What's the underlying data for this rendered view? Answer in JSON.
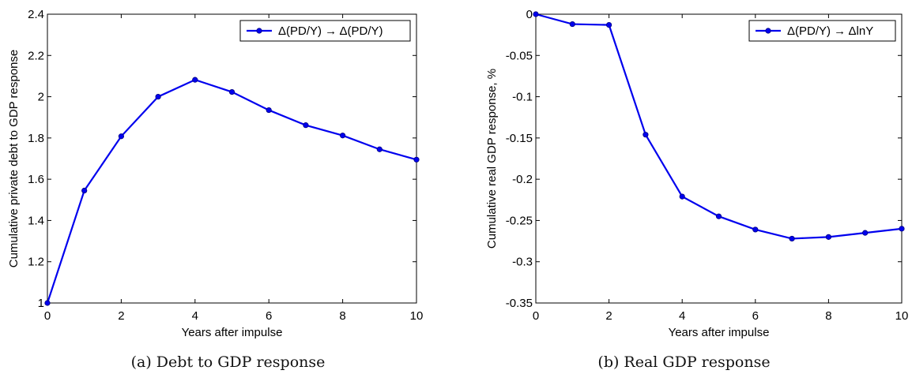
{
  "chart_data": [
    {
      "type": "line",
      "title": "",
      "xlabel": "Years after impulse",
      "ylabel": "Cumulative private debt to GDP response",
      "xlim": [
        0,
        10
      ],
      "ylim": [
        1,
        2.4
      ],
      "x_ticks": [
        "0",
        "2",
        "4",
        "6",
        "8",
        "10"
      ],
      "y_ticks": [
        "1",
        "1.2",
        "1.4",
        "1.6",
        "1.8",
        "2",
        "2.2",
        "2.4"
      ],
      "grid": false,
      "legend_position": "top-right",
      "series": [
        {
          "name": "Δ(PD/Y) → Δ(PD/Y)",
          "color": "#0000ee",
          "x": [
            0,
            1,
            2,
            3,
            4,
            5,
            6,
            7,
            8,
            9,
            10
          ],
          "y": [
            1.0,
            1.545,
            1.808,
            2.0,
            2.082,
            2.023,
            1.935,
            1.862,
            1.812,
            1.745,
            1.695
          ]
        }
      ],
      "caption": "(a) Debt to GDP response"
    },
    {
      "type": "line",
      "title": "",
      "xlabel": "Years after impulse",
      "ylabel": "Cumulative real GDP response, %",
      "xlim": [
        0,
        10
      ],
      "ylim": [
        -0.35,
        0
      ],
      "x_ticks": [
        "0",
        "2",
        "4",
        "6",
        "8",
        "10"
      ],
      "y_ticks": [
        "0",
        "-0.05",
        "-0.1",
        "-0.15",
        "-0.2",
        "-0.25",
        "-0.3",
        "-0.35"
      ],
      "grid": false,
      "legend_position": "top-right",
      "series": [
        {
          "name": "Δ(PD/Y) → ΔlnY",
          "color": "#0000ee",
          "x": [
            0,
            1,
            2,
            3,
            4,
            5,
            6,
            7,
            8,
            9,
            10
          ],
          "y": [
            0.0,
            -0.012,
            -0.013,
            -0.146,
            -0.221,
            -0.245,
            -0.261,
            -0.272,
            -0.27,
            -0.265,
            -0.26
          ]
        }
      ],
      "caption": "(b) Real GDP response"
    }
  ]
}
